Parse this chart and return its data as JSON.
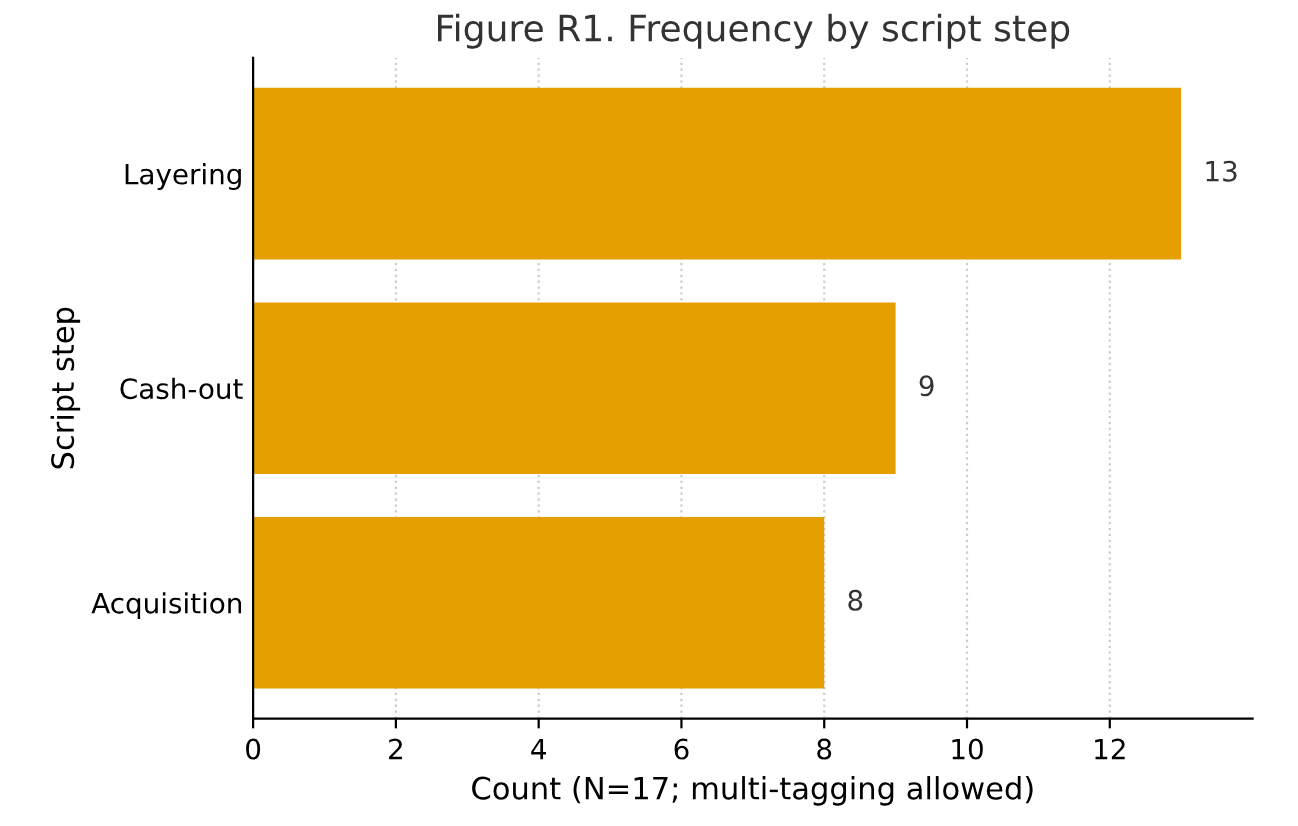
{
  "chart_data": {
    "type": "bar",
    "orientation": "horizontal",
    "title": "Figure R1. Frequency by script step",
    "xlabel": "Count (N=17; multi-tagging allowed)",
    "ylabel": "Script step",
    "categories": [
      "Layering",
      "Cash-out",
      "Acquisition"
    ],
    "values": [
      13,
      9,
      8
    ],
    "color": "#e69f00",
    "data_labels": true,
    "xlim": [
      0,
      14
    ],
    "xticks": [
      0,
      2,
      4,
      6,
      8,
      10,
      12
    ],
    "grid": "x"
  }
}
